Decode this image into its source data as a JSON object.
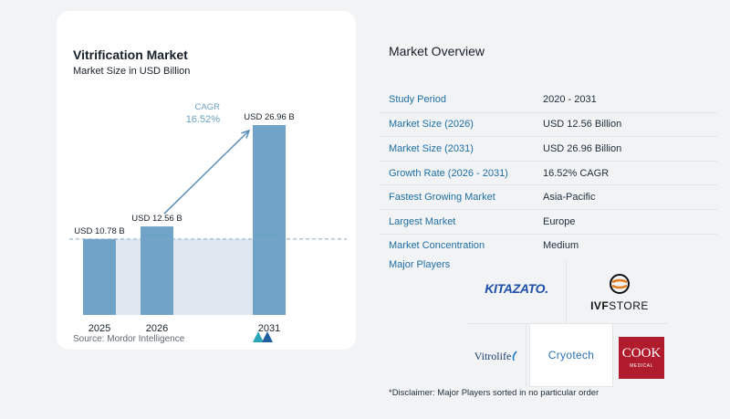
{
  "chart": {
    "title": "Vitrification Market",
    "subtitle": "Market Size in USD Billion",
    "source": "Source:  Mordor Intelligence",
    "cagr_label": "CAGR",
    "cagr_value": "16.52%",
    "bar_color": "#6fa3c7",
    "shade_color": "#dfe8f1",
    "arrow_color": "#5a8fb8"
  },
  "chart_data": {
    "type": "bar",
    "categories": [
      "2025",
      "2026",
      "2031"
    ],
    "values": [
      10.78,
      12.56,
      26.96
    ],
    "data_labels": [
      "USD 10.78 B",
      "USD 12.56 B",
      "USD 26.96 B"
    ],
    "title": "Vitrification Market",
    "subtitle": "Market Size in USD Billion",
    "xlabel": "",
    "ylabel": "",
    "ylim": [
      0,
      30
    ],
    "annotations": [
      "CAGR",
      "16.52%"
    ]
  },
  "overview": {
    "title": "Market Overview",
    "rows": [
      {
        "label": "Study Period",
        "value": "2020 - 2031"
      },
      {
        "label": "Market Size (2026)",
        "value": "USD 12.56 Billion"
      },
      {
        "label": "Market Size (2031)",
        "value": "USD 26.96 Billion"
      },
      {
        "label": "Growth Rate (2026 - 2031)",
        "value": "16.52% CAGR"
      },
      {
        "label": "Fastest Growing Market",
        "value": "Asia-Pacific"
      },
      {
        "label": "Largest Market",
        "value": "Europe"
      },
      {
        "label": "Market Concentration",
        "value": "Medium"
      }
    ],
    "players_label": "Major Players",
    "players": {
      "kitazato": "KITAZATO.",
      "ivf_a": "IVF",
      "ivf_b": "STORE",
      "vitrolife": "Vitrolife",
      "cryotech": "Cryotech",
      "cook_a": "COOK",
      "cook_b": "MEDICAL"
    },
    "disclaimer": "*Disclaimer: Major Players sorted in no particular order"
  }
}
